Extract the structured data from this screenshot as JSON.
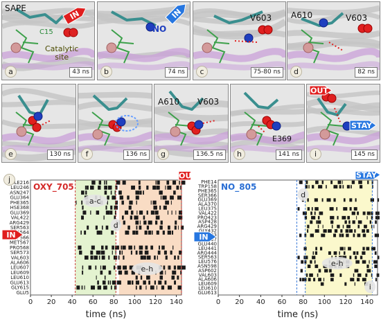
{
  "panels": [
    {
      "id": "a",
      "time": "43 ns"
    },
    {
      "id": "b",
      "time": "74 ns"
    },
    {
      "id": "c",
      "time": "75-80 ns"
    },
    {
      "id": "d",
      "time": "82 ns"
    },
    {
      "id": "e",
      "time": "130 ns"
    },
    {
      "id": "f",
      "time": "136 ns"
    },
    {
      "id": "g",
      "time": "136.5 ns"
    },
    {
      "id": "h",
      "time": "141 ns"
    },
    {
      "id": "i",
      "time": "145 ns"
    }
  ],
  "annotations": {
    "sape": "SAPE",
    "c15": "C15",
    "o2": "O₂",
    "catalytic": "Catalytic",
    "site": "site",
    "no": "NO",
    "v603": "V603",
    "a610": "A610",
    "e369": "E369",
    "in": "IN",
    "out": "OUT",
    "stay": "STAY"
  },
  "colors": {
    "oxy_title": "#d42a2a",
    "no_title": "#2a6fd4",
    "green_band": "#e4f3d0",
    "orange_band": "#f9dcc4",
    "yellow_band": "#fbf8cc",
    "arrow_red": "#e01e1e",
    "arrow_blue": "#2676e0"
  },
  "chart_labels": {
    "j": "j",
    "oxy_title": "OXY_705",
    "no_title": "NO_805",
    "ac": "a-c",
    "eh1": "e-h",
    "eh2": "e-h",
    "d1": "d",
    "d2": "d",
    "i": "i",
    "xlabel": "time (ns)"
  },
  "chart_data": [
    {
      "type": "heatmap",
      "title": "OXY_705",
      "xlabel": "time (ns)",
      "xlim": [
        0,
        145
      ],
      "xticks": [
        0,
        20,
        40,
        60,
        80,
        100,
        120,
        140
      ],
      "residues": [
        "ILE216",
        "LEU246",
        "ASN247",
        "GLU364",
        "PHE365",
        "HSE368",
        "GLU369",
        "VAL422",
        "ARG429",
        "SER563",
        "CYS564",
        "TRP566",
        "MET567",
        "PRO568",
        "SER573",
        "VAL603",
        "ALA606",
        "LEU607",
        "LEU609",
        "LEU610",
        "GLU613",
        "GLY615",
        "GLU5"
      ],
      "regions": [
        {
          "label": "a-c",
          "x": [
            43,
            82
          ],
          "color": "green"
        },
        {
          "label": "e-h",
          "x": [
            85,
            145
          ],
          "color": "orange"
        }
      ],
      "events": [
        {
          "label": "IN",
          "x": 43
        },
        {
          "label": "d",
          "x": 82
        },
        {
          "label": "OUT",
          "x": 145
        }
      ]
    },
    {
      "type": "heatmap",
      "title": "NO_805",
      "xlabel": "time (ns)",
      "xlim": [
        0,
        150
      ],
      "xticks": [
        0,
        20,
        40,
        60,
        80,
        100,
        120,
        140
      ],
      "residues": [
        "PHE14",
        "TRP158",
        "PHE365",
        "SER366",
        "GLU369",
        "ALA370",
        "LEU375",
        "VAL422",
        "PRO423",
        "ASP428",
        "ARG429",
        "GLY432",
        "ILE433",
        "GLN437",
        "GLU440",
        "LEU441",
        "ARG444",
        "SER563",
        "LEU576",
        "ASN598",
        "ASP602",
        "VAL603",
        "ALA606",
        "LEU609",
        "LEU610",
        "GLU613"
      ],
      "regions": [
        {
          "label": "e-h",
          "x": [
            82,
            145
          ],
          "color": "yellow"
        }
      ],
      "events": [
        {
          "label": "IN",
          "x": 74
        },
        {
          "label": "d",
          "x": 82
        },
        {
          "label": "STAY",
          "x": 145
        },
        {
          "label": "i",
          "x": 145
        }
      ]
    }
  ]
}
